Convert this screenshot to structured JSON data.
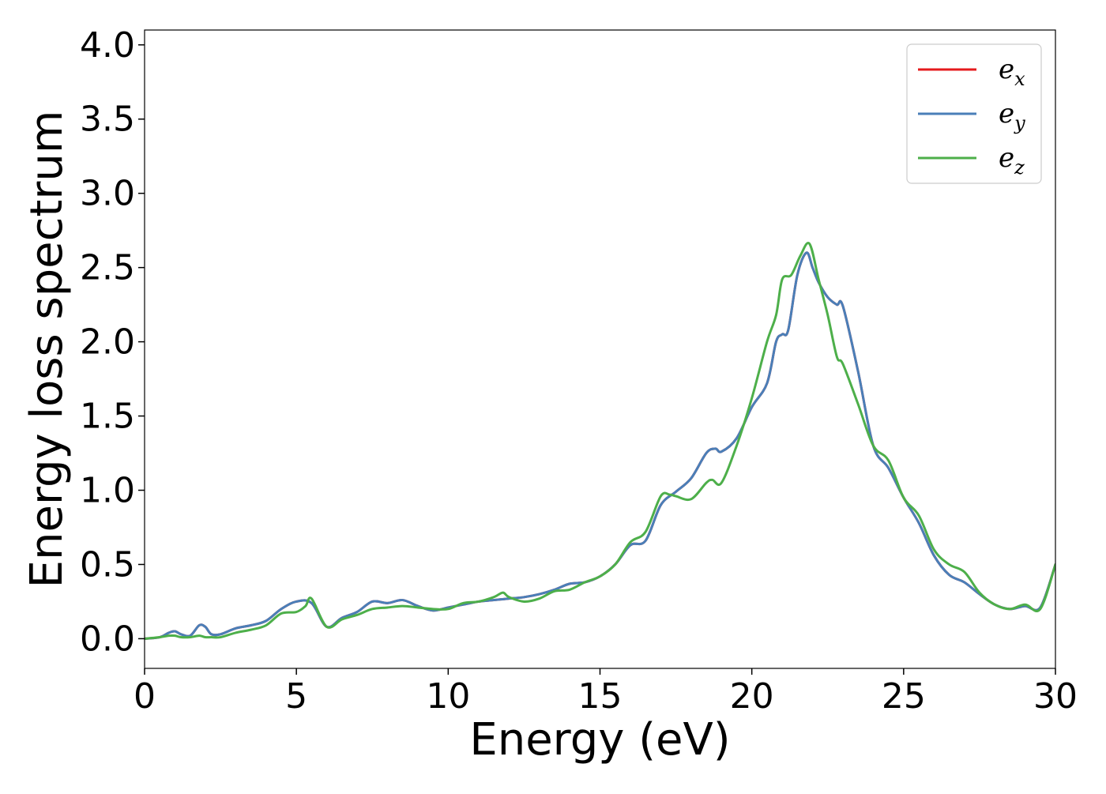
{
  "chart_data": {
    "type": "line",
    "xlabel": "Energy (eV)",
    "ylabel": "Energy loss spectrum",
    "xlim": [
      0,
      30
    ],
    "ylim": [
      -0.2,
      4.1
    ],
    "xticks": [
      0,
      5,
      10,
      15,
      20,
      25,
      30
    ],
    "xtick_labels": [
      "0",
      "5",
      "10",
      "15",
      "20",
      "25",
      "30"
    ],
    "yticks": [
      0.0,
      0.5,
      1.0,
      1.5,
      2.0,
      2.5,
      3.0,
      3.5,
      4.0
    ],
    "ytick_labels": [
      "0.0",
      "0.5",
      "1.0",
      "1.5",
      "2.0",
      "2.5",
      "3.0",
      "3.5",
      "4.0"
    ],
    "grid": false,
    "legend": {
      "placement": "top-right"
    },
    "series": [
      {
        "name": "e_x",
        "label_base": "e",
        "label_sub": "x",
        "color": "#e41a1c",
        "x": [
          0,
          0.5,
          0.8,
          1.0,
          1.2,
          1.5,
          1.8,
          2.0,
          2.2,
          2.5,
          3.0,
          3.5,
          4.0,
          4.5,
          5.0,
          5.5,
          6.0,
          6.5,
          7.0,
          7.5,
          8.0,
          8.5,
          9.0,
          9.5,
          10.0,
          10.5,
          11.0,
          11.5,
          12.0,
          12.5,
          13.0,
          13.5,
          14.0,
          14.5,
          15.0,
          15.5,
          16.0,
          16.5,
          17.0,
          17.5,
          18.0,
          18.5,
          18.8,
          19.0,
          19.5,
          20.0,
          20.5,
          20.8,
          21.0,
          21.2,
          21.5,
          21.8,
          22.0,
          22.2,
          22.5,
          22.8,
          23.0,
          23.5,
          24.0,
          24.5,
          25.0,
          25.5,
          26.0,
          26.5,
          27.0,
          27.5,
          28.0,
          28.5,
          29.0,
          29.5,
          30.0
        ],
        "y": [
          0.0,
          0.01,
          0.04,
          0.05,
          0.03,
          0.02,
          0.09,
          0.08,
          0.03,
          0.03,
          0.07,
          0.09,
          0.12,
          0.2,
          0.25,
          0.24,
          0.08,
          0.14,
          0.18,
          0.25,
          0.24,
          0.26,
          0.22,
          0.19,
          0.21,
          0.23,
          0.25,
          0.26,
          0.27,
          0.28,
          0.3,
          0.33,
          0.37,
          0.38,
          0.42,
          0.5,
          0.63,
          0.66,
          0.9,
          0.99,
          1.08,
          1.25,
          1.28,
          1.26,
          1.35,
          1.56,
          1.72,
          2.0,
          2.05,
          2.08,
          2.45,
          2.6,
          2.5,
          2.4,
          2.3,
          2.25,
          2.24,
          1.8,
          1.3,
          1.15,
          0.95,
          0.78,
          0.56,
          0.43,
          0.38,
          0.3,
          0.23,
          0.2,
          0.22,
          0.21,
          0.5
        ]
      },
      {
        "name": "e_y",
        "label_base": "e",
        "label_sub": "y",
        "color": "#4a7fb8",
        "x": [
          0,
          0.5,
          0.8,
          1.0,
          1.2,
          1.5,
          1.8,
          2.0,
          2.2,
          2.5,
          3.0,
          3.5,
          4.0,
          4.5,
          5.0,
          5.5,
          6.0,
          6.5,
          7.0,
          7.5,
          8.0,
          8.5,
          9.0,
          9.5,
          10.0,
          10.5,
          11.0,
          11.5,
          12.0,
          12.5,
          13.0,
          13.5,
          14.0,
          14.5,
          15.0,
          15.5,
          16.0,
          16.5,
          17.0,
          17.5,
          18.0,
          18.5,
          18.8,
          19.0,
          19.5,
          20.0,
          20.5,
          20.8,
          21.0,
          21.2,
          21.5,
          21.8,
          22.0,
          22.2,
          22.5,
          22.8,
          23.0,
          23.5,
          24.0,
          24.5,
          25.0,
          25.5,
          26.0,
          26.5,
          27.0,
          27.5,
          28.0,
          28.5,
          29.0,
          29.5,
          30.0
        ],
        "y": [
          0.0,
          0.01,
          0.04,
          0.05,
          0.03,
          0.02,
          0.09,
          0.08,
          0.03,
          0.03,
          0.07,
          0.09,
          0.12,
          0.2,
          0.25,
          0.24,
          0.08,
          0.14,
          0.18,
          0.25,
          0.24,
          0.26,
          0.22,
          0.19,
          0.21,
          0.23,
          0.25,
          0.26,
          0.27,
          0.28,
          0.3,
          0.33,
          0.37,
          0.38,
          0.42,
          0.5,
          0.63,
          0.66,
          0.9,
          0.99,
          1.08,
          1.25,
          1.28,
          1.26,
          1.35,
          1.56,
          1.72,
          2.0,
          2.05,
          2.08,
          2.45,
          2.6,
          2.5,
          2.4,
          2.3,
          2.25,
          2.24,
          1.8,
          1.3,
          1.15,
          0.95,
          0.78,
          0.56,
          0.43,
          0.38,
          0.3,
          0.23,
          0.2,
          0.22,
          0.21,
          0.5
        ]
      },
      {
        "name": "e_z",
        "label_base": "e",
        "label_sub": "z",
        "color": "#4daf4a",
        "x": [
          0,
          0.5,
          0.8,
          1.0,
          1.2,
          1.5,
          1.8,
          2.0,
          2.2,
          2.5,
          3.0,
          3.5,
          4.0,
          4.5,
          5.0,
          5.3,
          5.5,
          6.0,
          6.5,
          7.0,
          7.5,
          8.0,
          8.5,
          9.0,
          9.5,
          10.0,
          10.5,
          11.0,
          11.5,
          11.8,
          12.0,
          12.5,
          13.0,
          13.5,
          14.0,
          14.5,
          15.0,
          15.5,
          16.0,
          16.5,
          17.0,
          17.3,
          17.5,
          18.0,
          18.5,
          18.7,
          19.0,
          19.5,
          20.0,
          20.5,
          20.8,
          21.0,
          21.3,
          21.6,
          21.9,
          22.2,
          22.5,
          22.8,
          23.0,
          23.5,
          24.0,
          24.5,
          25.0,
          25.5,
          26.0,
          26.5,
          27.0,
          27.5,
          28.0,
          28.5,
          29.0,
          29.5,
          30.0
        ],
        "y": [
          0.0,
          0.01,
          0.02,
          0.02,
          0.01,
          0.01,
          0.02,
          0.01,
          0.01,
          0.01,
          0.04,
          0.06,
          0.09,
          0.17,
          0.18,
          0.22,
          0.27,
          0.08,
          0.13,
          0.16,
          0.2,
          0.21,
          0.22,
          0.21,
          0.2,
          0.2,
          0.24,
          0.25,
          0.28,
          0.31,
          0.28,
          0.25,
          0.27,
          0.32,
          0.33,
          0.38,
          0.42,
          0.5,
          0.65,
          0.72,
          0.96,
          0.97,
          0.96,
          0.94,
          1.05,
          1.07,
          1.05,
          1.3,
          1.62,
          2.0,
          2.18,
          2.42,
          2.45,
          2.58,
          2.66,
          2.42,
          2.18,
          1.9,
          1.85,
          1.58,
          1.3,
          1.2,
          0.95,
          0.83,
          0.6,
          0.5,
          0.45,
          0.31,
          0.23,
          0.2,
          0.23,
          0.2,
          0.5
        ]
      }
    ]
  }
}
